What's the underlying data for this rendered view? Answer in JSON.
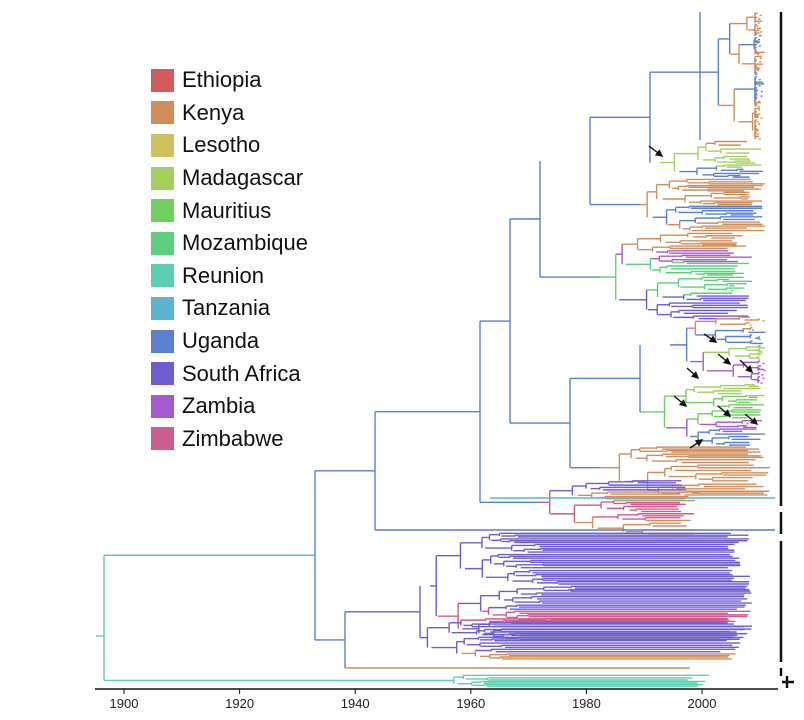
{
  "legend": [
    {
      "label": "Ethiopia",
      "color": "#d15c5c"
    },
    {
      "label": "Kenya",
      "color": "#cf8f5c"
    },
    {
      "label": "Lesotho",
      "color": "#cfc25c"
    },
    {
      "label": "Madagascar",
      "color": "#a3cf5c"
    },
    {
      "label": "Mauritius",
      "color": "#70cf5c"
    },
    {
      "label": "Mozambique",
      "color": "#5ccf7f"
    },
    {
      "label": "Reunion",
      "color": "#5ccfb0"
    },
    {
      "label": "Tanzania",
      "color": "#5cb3cf"
    },
    {
      "label": "Uganda",
      "color": "#5c7fcf"
    },
    {
      "label": "South Africa",
      "color": "#705ccf"
    },
    {
      "label": "Zambia",
      "color": "#a35ccf"
    },
    {
      "label": "Zimbabwe",
      "color": "#cf5c90"
    }
  ],
  "axis": {
    "ticks": [
      "1900",
      "1920",
      "1940",
      "1960",
      "1980",
      "2000"
    ],
    "range": [
      1895,
      2012
    ]
  }
}
